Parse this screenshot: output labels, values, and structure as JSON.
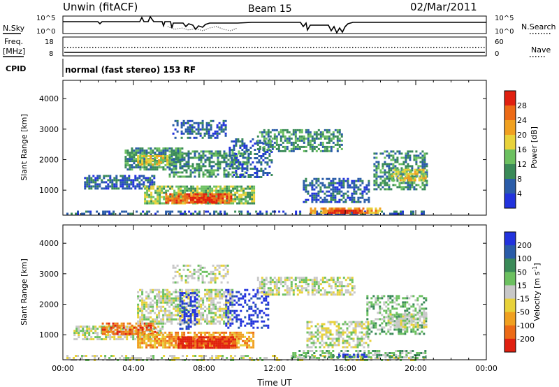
{
  "header": {
    "station": "Unwin (fitACF)",
    "beam": "Beam 15",
    "date": "02/Mar/2011"
  },
  "left_labels": {
    "nsky": "N.Sky",
    "freq": "Freq.",
    "freq_unit": "[MHz]",
    "cpid": "CPID"
  },
  "right_labels": {
    "nsearch": "N.Search",
    "nave": "Nave"
  },
  "noise_panel": {
    "left_ticks": [
      "10^5",
      "10^0"
    ],
    "right_ticks": [
      "10^5",
      "10^0"
    ]
  },
  "freq_panel": {
    "left_ticks": [
      "18",
      "8"
    ],
    "right_ticks": [
      "60",
      "0"
    ]
  },
  "cpid_text": "normal (fast stereo) 153 RF",
  "colors": {
    "power": [
      "#2233dd",
      "#2a5ca8",
      "#3a8a58",
      "#6cc060",
      "#e8d23a",
      "#f0a020",
      "#ec6a16",
      "#e02010"
    ],
    "velocity": [
      "#2233dd",
      "#2a5ca8",
      "#3a8a58",
      "#6cc060",
      "#c8c8c8",
      "#e8d23a",
      "#f0a020",
      "#ec6a16",
      "#e02010"
    ]
  },
  "chart_data": [
    {
      "type": "heatmap",
      "xlabel": "Time UT",
      "ylabel": "Slant Range [km]",
      "x_ticks": [
        "00:00",
        "04:00",
        "08:00",
        "12:00",
        "16:00",
        "20:00",
        "00:00"
      ],
      "x_range_hours": [
        0,
        24
      ],
      "y_ticks": [
        1000,
        2000,
        3000,
        4000
      ],
      "ylim": [
        180,
        4600
      ],
      "colorbar": {
        "label": "Power [dB]",
        "ticks": [
          "4",
          "8",
          "12",
          "16",
          "20",
          "24",
          "28"
        ]
      },
      "regions": [
        {
          "t0": 0.2,
          "t1": 20.6,
          "r0": 200,
          "r1": 330,
          "level": 1,
          "density": 0.45
        },
        {
          "t0": 1.2,
          "t1": 5.2,
          "r0": 1050,
          "r1": 1500,
          "level": 1,
          "density": 0.7
        },
        {
          "t0": 3.5,
          "t1": 6.8,
          "r0": 1700,
          "r1": 2400,
          "level": 2,
          "density": 0.75
        },
        {
          "t0": 4.2,
          "t1": 6.2,
          "r0": 1850,
          "r1": 2150,
          "level": 4,
          "density": 0.7
        },
        {
          "t0": 6.0,
          "t1": 10.4,
          "r0": 1450,
          "r1": 2300,
          "level": 2,
          "density": 0.6
        },
        {
          "t0": 4.6,
          "t1": 10.8,
          "r0": 560,
          "r1": 1150,
          "level": 3,
          "density": 0.8
        },
        {
          "t0": 5.8,
          "t1": 9.6,
          "r0": 580,
          "r1": 900,
          "level": 6,
          "density": 0.85
        },
        {
          "t0": 7.2,
          "t1": 8.6,
          "r0": 600,
          "r1": 780,
          "level": 7,
          "density": 0.95
        },
        {
          "t0": 6.2,
          "t1": 9.2,
          "r0": 2700,
          "r1": 3300,
          "level": 1,
          "density": 0.45
        },
        {
          "t0": 9.4,
          "t1": 11.8,
          "r0": 1400,
          "r1": 2700,
          "level": 1,
          "density": 0.35
        },
        {
          "t0": 11.0,
          "t1": 15.8,
          "r0": 2300,
          "r1": 3000,
          "level": 2,
          "density": 0.6
        },
        {
          "t0": 13.6,
          "t1": 17.4,
          "r0": 600,
          "r1": 1400,
          "level": 1,
          "density": 0.55
        },
        {
          "t0": 14.0,
          "t1": 18.0,
          "r0": 260,
          "r1": 430,
          "level": 5,
          "density": 0.8
        },
        {
          "t0": 15.0,
          "t1": 17.0,
          "r0": 270,
          "r1": 360,
          "level": 7,
          "density": 0.9
        },
        {
          "t0": 17.6,
          "t1": 20.6,
          "r0": 1000,
          "r1": 2300,
          "level": 2,
          "density": 0.55
        },
        {
          "t0": 18.6,
          "t1": 20.6,
          "r0": 1350,
          "r1": 1700,
          "level": 4,
          "density": 0.7
        }
      ]
    },
    {
      "type": "heatmap",
      "xlabel": "Time UT",
      "ylabel": "Slant Range [km]",
      "x_ticks": [
        "00:00",
        "04:00",
        "08:00",
        "12:00",
        "16:00",
        "20:00",
        "00:00"
      ],
      "x_range_hours": [
        0,
        24
      ],
      "y_ticks": [
        1000,
        2000,
        3000,
        4000
      ],
      "ylim": [
        180,
        4600
      ],
      "colorbar": {
        "label": "Velocity [m s-1]",
        "ticks": [
          "200",
          "100",
          "50",
          "15",
          "-15",
          "-50",
          "-100",
          "-200"
        ]
      },
      "regions": [
        {
          "t0": 0.2,
          "t1": 20.6,
          "r0": 200,
          "r1": 340,
          "level": 4,
          "density": 0.45
        },
        {
          "t0": 0.6,
          "t1": 5.6,
          "r0": 850,
          "r1": 1300,
          "level": 4,
          "density": 0.7
        },
        {
          "t0": 2.2,
          "t1": 5.2,
          "r0": 1050,
          "r1": 1400,
          "level": 7,
          "density": 0.65
        },
        {
          "t0": 4.2,
          "t1": 10.8,
          "r0": 560,
          "r1": 1100,
          "level": 6,
          "density": 0.75
        },
        {
          "t0": 6.5,
          "t1": 9.8,
          "r0": 600,
          "r1": 950,
          "level": 8,
          "density": 0.9
        },
        {
          "t0": 4.2,
          "t1": 9.6,
          "r0": 1400,
          "r1": 2500,
          "level": 4,
          "density": 0.65
        },
        {
          "t0": 6.6,
          "t1": 7.6,
          "r0": 1200,
          "r1": 2400,
          "level": 0,
          "density": 0.45
        },
        {
          "t0": 9.2,
          "t1": 11.6,
          "r0": 1200,
          "r1": 2500,
          "level": 0,
          "density": 0.35
        },
        {
          "t0": 6.2,
          "t1": 9.4,
          "r0": 2700,
          "r1": 3300,
          "level": 4,
          "density": 0.45
        },
        {
          "t0": 11.0,
          "t1": 16.5,
          "r0": 2300,
          "r1": 2900,
          "level": 4,
          "density": 0.6
        },
        {
          "t0": 13.8,
          "t1": 17.4,
          "r0": 600,
          "r1": 1450,
          "level": 4,
          "density": 0.55
        },
        {
          "t0": 13.0,
          "t1": 20.6,
          "r0": 260,
          "r1": 500,
          "level": 3,
          "density": 0.55
        },
        {
          "t0": 15.6,
          "t1": 17.2,
          "r0": 260,
          "r1": 380,
          "level": 0,
          "density": 0.55
        },
        {
          "t0": 17.2,
          "t1": 20.6,
          "r0": 1000,
          "r1": 2300,
          "level": 3,
          "density": 0.45
        },
        {
          "t0": 18.4,
          "t1": 20.6,
          "r0": 1250,
          "r1": 1700,
          "level": 4,
          "density": 0.7
        }
      ]
    }
  ]
}
